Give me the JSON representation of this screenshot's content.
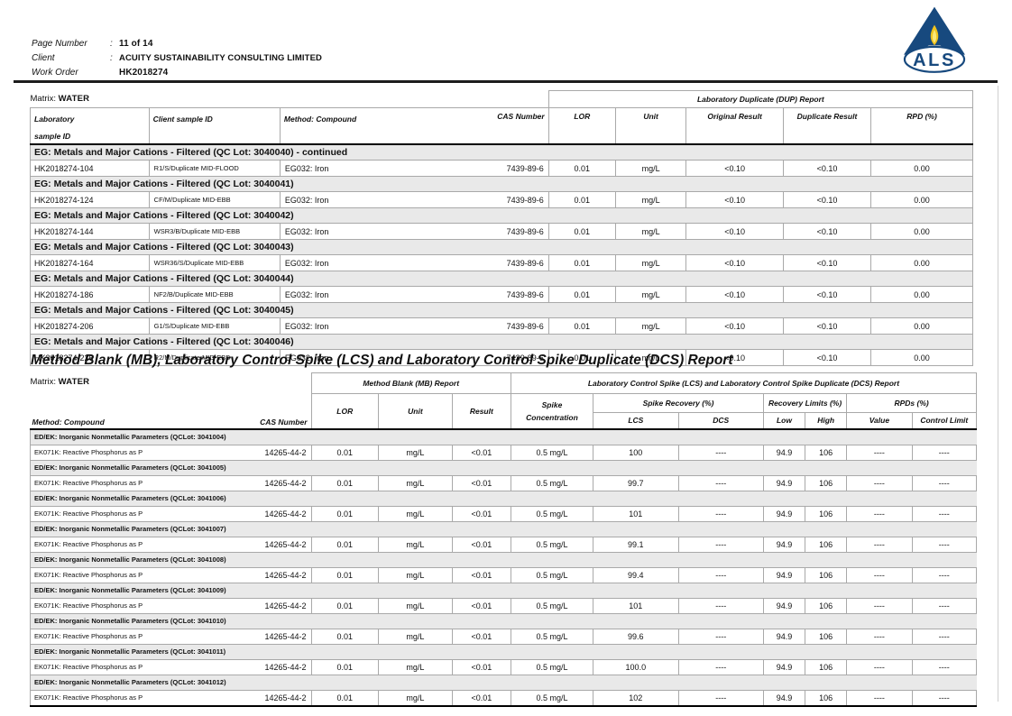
{
  "page_header": {
    "rows": [
      {
        "label": "Page Number",
        "colon": ":",
        "value": "11 of 14"
      },
      {
        "label": "Client",
        "colon": ":",
        "value": "ACUITY SUSTAINABILITY CONSULTING LIMITED"
      },
      {
        "label": "Work Order",
        "colon": "",
        "value": "HK2018274"
      }
    ],
    "logo": {
      "text": "ALS",
      "navy": "#17497E",
      "yellow": "#F2C41D"
    }
  },
  "dup_table": {
    "matrix_label": "Matrix:",
    "matrix_value": "WATER",
    "span_header": "Laboratory Duplicate (DUP) Report",
    "columns": {
      "lab_id_line1": "Laboratory",
      "lab_id_line2": "sample ID",
      "client_id": "Client sample ID",
      "method": "Method: Compound",
      "cas": "CAS Number",
      "lor": "LOR",
      "unit": "Unit",
      "original": "Original Result",
      "duplicate": "Duplicate Result",
      "rpd": "RPD (%)"
    },
    "groups": [
      {
        "title": "EG: Metals and Major Cations - Filtered  (QC Lot: 3040040)  - continued",
        "rows": [
          [
            "HK2018274-104",
            "R1/S/Duplicate MID-FLOOD",
            "EG032: Iron",
            "7439-89-6",
            "0.01",
            "mg/L",
            "<0.10",
            "<0.10",
            "0.00"
          ]
        ]
      },
      {
        "title": "EG: Metals and Major Cations - Filtered  (QC Lot: 3040041)",
        "rows": [
          [
            "HK2018274-124",
            "CF/M/Duplicate MID-EBB",
            "EG032: Iron",
            "7439-89-6",
            "0.01",
            "mg/L",
            "<0.10",
            "<0.10",
            "0.00"
          ]
        ]
      },
      {
        "title": "EG: Metals and Major Cations - Filtered  (QC Lot: 3040042)",
        "rows": [
          [
            "HK2018274-144",
            "WSR3/B/Duplicate MID-EBB",
            "EG032: Iron",
            "7439-89-6",
            "0.01",
            "mg/L",
            "<0.10",
            "<0.10",
            "0.00"
          ]
        ]
      },
      {
        "title": "EG: Metals and Major Cations - Filtered  (QC Lot: 3040043)",
        "rows": [
          [
            "HK2018274-164",
            "WSR36/S/Duplicate MID-EBB",
            "EG032: Iron",
            "7439-89-6",
            "0.01",
            "mg/L",
            "<0.10",
            "<0.10",
            "0.00"
          ]
        ]
      },
      {
        "title": "EG: Metals and Major Cations - Filtered  (QC Lot: 3040044)",
        "rows": [
          [
            "HK2018274-186",
            "NF2/B/Duplicate MID-EBB",
            "EG032: Iron",
            "7439-89-6",
            "0.01",
            "mg/L",
            "<0.10",
            "<0.10",
            "0.00"
          ]
        ]
      },
      {
        "title": "EG: Metals and Major Cations - Filtered  (QC Lot: 3040045)",
        "rows": [
          [
            "HK2018274-206",
            "G1/S/Duplicate MID-EBB",
            "EG032: Iron",
            "7439-89-6",
            "0.01",
            "mg/L",
            "<0.10",
            "<0.10",
            "0.00"
          ]
        ]
      },
      {
        "title": "EG: Metals and Major Cations - Filtered  (QC Lot: 3040046)",
        "rows": [
          [
            "HK2018274-226",
            "R2/M/Duplicate MID-EBB",
            "EG032: Iron",
            "7439-89-6",
            "0.01",
            "mg/L",
            "<0.10",
            "<0.10",
            "0.00"
          ]
        ]
      }
    ]
  },
  "section_title": "Method Blank (MB), Laboratory Control Spike (LCS) and Laboratory Control Spike Duplicate (DCS) Report",
  "mb_table": {
    "matrix_label": "Matrix:",
    "matrix_value": "WATER",
    "mb_span": "Method Blank (MB) Report",
    "lcs_span": "Laboratory Control Spike (LCS) and Laboratory Control Spike Duplicate (DCS) Report",
    "columns": {
      "method": "Method: Compound",
      "cas": "CAS Number",
      "lor": "LOR",
      "unit": "Unit",
      "result": "Result",
      "spike_conc_line1": "Spike",
      "spike_conc_line2": "Concentration",
      "spike_recovery": "Spike Recovery (%)",
      "recovery_limits": "Recovery Limits (%)",
      "rpds": "RPDs (%)",
      "lcs": "LCS",
      "dcs": "DCS",
      "low": "Low",
      "high": "High",
      "value": "Value",
      "control_limit": "Control Limit"
    },
    "groups": [
      {
        "title": "ED/EK: Inorganic Nonmetallic Parameters  (QCLot: 3041004)",
        "rows": [
          [
            "EK071K: Reactive Phosphorus as P",
            "14265-44-2",
            "0.01",
            "mg/L",
            "<0.01",
            "0.5 mg/L",
            "100",
            "----",
            "94.9",
            "106",
            "----",
            "----"
          ]
        ]
      },
      {
        "title": "ED/EK: Inorganic Nonmetallic Parameters  (QCLot: 3041005)",
        "rows": [
          [
            "EK071K: Reactive Phosphorus as P",
            "14265-44-2",
            "0.01",
            "mg/L",
            "<0.01",
            "0.5 mg/L",
            "99.7",
            "----",
            "94.9",
            "106",
            "----",
            "----"
          ]
        ]
      },
      {
        "title": "ED/EK: Inorganic Nonmetallic Parameters  (QCLot: 3041006)",
        "rows": [
          [
            "EK071K: Reactive Phosphorus as P",
            "14265-44-2",
            "0.01",
            "mg/L",
            "<0.01",
            "0.5 mg/L",
            "101",
            "----",
            "94.9",
            "106",
            "----",
            "----"
          ]
        ]
      },
      {
        "title": "ED/EK: Inorganic Nonmetallic Parameters  (QCLot: 3041007)",
        "rows": [
          [
            "EK071K: Reactive Phosphorus as P",
            "14265-44-2",
            "0.01",
            "mg/L",
            "<0.01",
            "0.5 mg/L",
            "99.1",
            "----",
            "94.9",
            "106",
            "----",
            "----"
          ]
        ]
      },
      {
        "title": "ED/EK: Inorganic Nonmetallic Parameters  (QCLot: 3041008)",
        "rows": [
          [
            "EK071K: Reactive Phosphorus as P",
            "14265-44-2",
            "0.01",
            "mg/L",
            "<0.01",
            "0.5 mg/L",
            "99.4",
            "----",
            "94.9",
            "106",
            "----",
            "----"
          ]
        ]
      },
      {
        "title": "ED/EK: Inorganic Nonmetallic Parameters  (QCLot: 3041009)",
        "rows": [
          [
            "EK071K: Reactive Phosphorus as P",
            "14265-44-2",
            "0.01",
            "mg/L",
            "<0.01",
            "0.5 mg/L",
            "101",
            "----",
            "94.9",
            "106",
            "----",
            "----"
          ]
        ]
      },
      {
        "title": "ED/EK: Inorganic Nonmetallic Parameters  (QCLot: 3041010)",
        "rows": [
          [
            "EK071K: Reactive Phosphorus as P",
            "14265-44-2",
            "0.01",
            "mg/L",
            "<0.01",
            "0.5 mg/L",
            "99.6",
            "----",
            "94.9",
            "106",
            "----",
            "----"
          ]
        ]
      },
      {
        "title": "ED/EK: Inorganic Nonmetallic Parameters  (QCLot: 3041011)",
        "rows": [
          [
            "EK071K: Reactive Phosphorus as P",
            "14265-44-2",
            "0.01",
            "mg/L",
            "<0.01",
            "0.5 mg/L",
            "100.0",
            "----",
            "94.9",
            "106",
            "----",
            "----"
          ]
        ]
      },
      {
        "title": "ED/EK: Inorganic Nonmetallic Parameters  (QCLot: 3041012)",
        "rows": [
          [
            "EK071K: Reactive Phosphorus as P",
            "14265-44-2",
            "0.01",
            "mg/L",
            "<0.01",
            "0.5 mg/L",
            "102",
            "----",
            "94.9",
            "106",
            "----",
            "----"
          ]
        ]
      }
    ]
  }
}
